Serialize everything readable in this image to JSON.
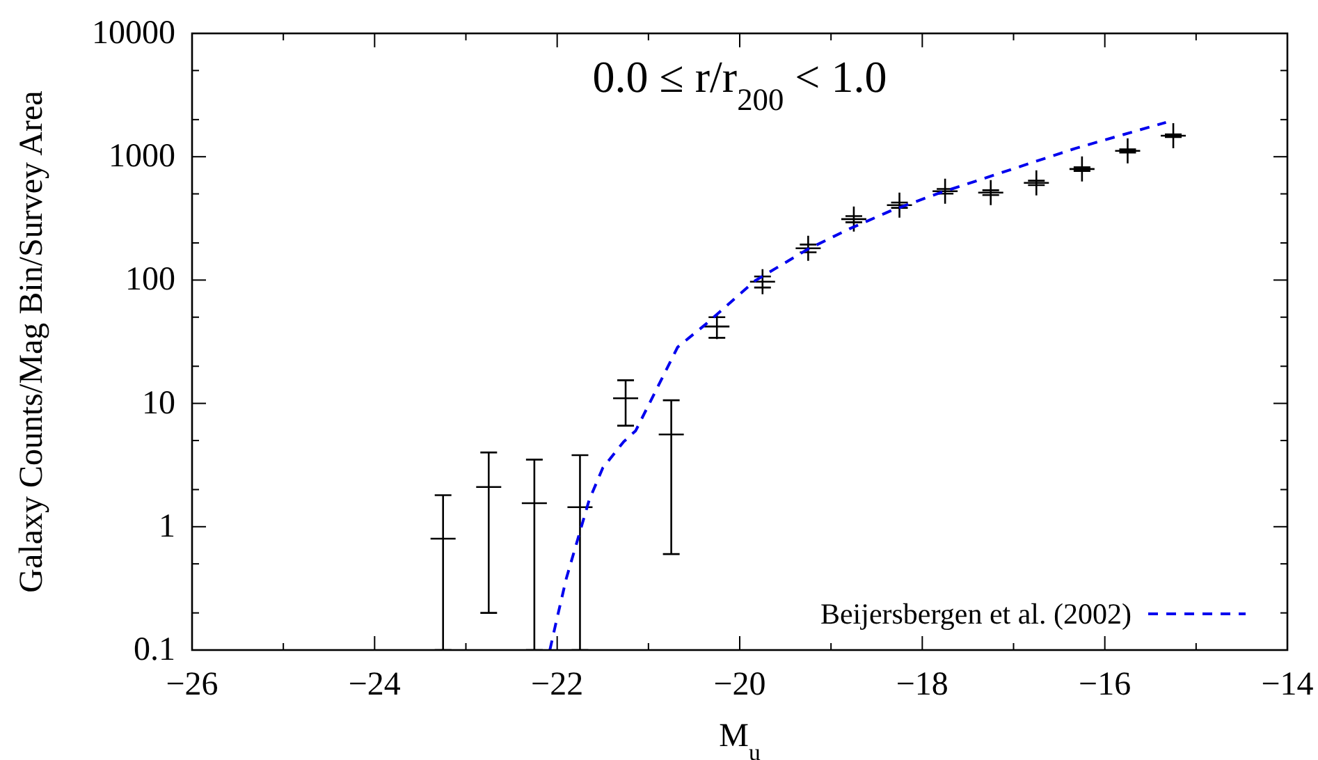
{
  "chart_data": {
    "type": "scatter",
    "title": "0.0 ≤ r/r$_{200}$ < 1.0",
    "xlabel": "M$_{u}$",
    "ylabel": "Galaxy Counts/Mag Bin/Survey Area",
    "log": "y",
    "xlim": [
      -26,
      -14
    ],
    "ylim": [
      0.1,
      10000
    ],
    "xticks": [
      {
        "value": -26,
        "label": "−26"
      },
      {
        "value": -25,
        "label": null
      },
      {
        "value": -24,
        "label": "−24"
      },
      {
        "value": -23,
        "label": null
      },
      {
        "value": -22,
        "label": "−22"
      },
      {
        "value": -21,
        "label": null
      },
      {
        "value": -20,
        "label": "−20"
      },
      {
        "value": -19,
        "label": null
      },
      {
        "value": -18,
        "label": "−18"
      },
      {
        "value": -17,
        "label": null
      },
      {
        "value": -16,
        "label": "−16"
      },
      {
        "value": -15,
        "label": null
      },
      {
        "value": -14,
        "label": "−14"
      }
    ],
    "yticks": [
      0.1,
      {
        "value": 0.2,
        "label": null
      },
      {
        "value": 0.5,
        "label": null
      },
      1,
      {
        "value": 2,
        "label": null
      },
      {
        "value": 5,
        "label": null
      },
      10,
      {
        "value": 20,
        "label": null
      },
      {
        "value": 50,
        "label": null
      },
      100,
      {
        "value": 200,
        "label": null
      },
      {
        "value": 500,
        "label": null
      },
      1000,
      {
        "value": 2000,
        "label": null
      },
      {
        "value": 5000,
        "label": null
      },
      10000
    ],
    "legend": "bottom right",
    "grid": false,
    "series": [
      {
        "color": "#000000",
        "marker": "cross",
        "x": [
          -23.25,
          -22.75,
          -22.25,
          -21.75,
          -21.25,
          -20.75,
          -20.25,
          -19.75,
          -19.25,
          -18.75,
          -18.25,
          -17.75,
          -17.25,
          -16.75,
          -16.25,
          -15.75,
          -15.25
        ],
        "values": [
          0.8,
          2.1,
          1.55,
          1.44,
          11,
          5.6,
          42,
          97,
          181,
          312,
          405,
          525,
          512,
          614,
          795,
          1115,
          1480
        ],
        "errors": [
          [
            0.1,
            1.8
          ],
          1.9,
          [
            0.1,
            3.5
          ],
          [
            0.1,
            3.8
          ],
          4.4,
          5.0,
          8,
          10,
          13,
          18,
          20,
          23,
          23,
          25,
          28,
          33,
          38
        ]
      },
      {
        "type": "line",
        "name": "Beijersbergen et al. (2002)",
        "color": "#0000ee",
        "line_style": "dashed",
        "x": [
          -22.08,
          -22.01,
          -21.9,
          -21.65,
          -21.5,
          -21.27,
          -21.14,
          -20.89,
          -20.68,
          -20.37,
          -19.83,
          -19.26,
          -18.8,
          -18.35,
          -17.84,
          -17.33,
          -16.82,
          -16.32,
          -15.8,
          -15.33
        ],
        "values": [
          0.1,
          0.17,
          0.38,
          1.64,
          3.0,
          4.9,
          6.0,
          14,
          28.6,
          44,
          99,
          177,
          260,
          363,
          500,
          665,
          885,
          1170,
          1510,
          1900
        ]
      }
    ]
  }
}
